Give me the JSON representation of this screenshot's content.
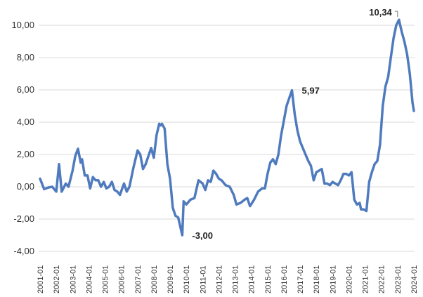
{
  "chart_data": {
    "type": "line",
    "title": "",
    "xlabel": "",
    "ylabel": "",
    "ylim": [
      -4,
      11
    ],
    "y_ticks": [
      -4,
      -2,
      0,
      2,
      4,
      6,
      8,
      10
    ],
    "y_tick_labels": [
      "-4,00",
      "-2,00",
      "0,00",
      "2,00",
      "4,00",
      "6,00",
      "8,00",
      "10,00"
    ],
    "x_tick_labels": [
      "2001-01",
      "2002-01",
      "2003-01",
      "2004-01",
      "2005-01",
      "2006-01",
      "2007-01",
      "2008-01",
      "2009-01",
      "2010-01",
      "2011-01",
      "2012-01",
      "2013-01",
      "2014-01",
      "2015-01",
      "2016-01",
      "2017-01",
      "2018-01",
      "2019-01",
      "2020-01",
      "2021-01",
      "2022-01",
      "2023-01",
      "2024-01"
    ],
    "grid": "horizontal",
    "color": "#4F7BBE",
    "series": [
      {
        "points": [
          [
            "2001-01",
            0.5
          ],
          [
            "2001-04",
            -0.15
          ],
          [
            "2001-07",
            -0.05
          ],
          [
            "2001-10",
            0.0
          ],
          [
            "2002-01",
            -0.3
          ],
          [
            "2002-03",
            1.4
          ],
          [
            "2002-05",
            -0.3
          ],
          [
            "2002-08",
            0.2
          ],
          [
            "2002-10",
            0.0
          ],
          [
            "2003-01",
            1.0
          ],
          [
            "2003-03",
            1.9
          ],
          [
            "2003-05",
            2.35
          ],
          [
            "2003-07",
            1.5
          ],
          [
            "2003-08",
            1.7
          ],
          [
            "2003-10",
            0.7
          ],
          [
            "2003-12",
            0.7
          ],
          [
            "2004-02",
            -0.1
          ],
          [
            "2004-04",
            0.6
          ],
          [
            "2004-06",
            0.4
          ],
          [
            "2004-08",
            0.4
          ],
          [
            "2004-10",
            0.0
          ],
          [
            "2004-12",
            0.3
          ],
          [
            "2005-02",
            -0.1
          ],
          [
            "2005-04",
            0.0
          ],
          [
            "2005-06",
            0.3
          ],
          [
            "2005-08",
            -0.2
          ],
          [
            "2005-10",
            -0.3
          ],
          [
            "2005-12",
            -0.5
          ],
          [
            "2006-03",
            0.2
          ],
          [
            "2006-05",
            -0.3
          ],
          [
            "2006-07",
            0.0
          ],
          [
            "2006-10",
            1.2
          ],
          [
            "2007-01",
            2.25
          ],
          [
            "2007-03",
            2.0
          ],
          [
            "2007-05",
            1.1
          ],
          [
            "2007-07",
            1.4
          ],
          [
            "2007-09",
            1.9
          ],
          [
            "2007-11",
            2.4
          ],
          [
            "2008-01",
            1.8
          ],
          [
            "2008-03",
            3.2
          ],
          [
            "2008-05",
            3.9
          ],
          [
            "2008-06",
            3.8
          ],
          [
            "2008-07",
            3.9
          ],
          [
            "2008-09",
            3.6
          ],
          [
            "2008-11",
            1.4
          ],
          [
            "2009-01",
            0.5
          ],
          [
            "2009-03",
            -1.3
          ],
          [
            "2009-05",
            -1.8
          ],
          [
            "2009-07",
            -1.9
          ],
          [
            "2009-10",
            -3.0
          ],
          [
            "2009-11",
            -0.9
          ],
          [
            "2010-01",
            -1.1
          ],
          [
            "2010-04",
            -0.8
          ],
          [
            "2010-07",
            -0.7
          ],
          [
            "2010-10",
            0.4
          ],
          [
            "2011-01",
            0.2
          ],
          [
            "2011-03",
            -0.2
          ],
          [
            "2011-05",
            0.4
          ],
          [
            "2011-07",
            0.3
          ],
          [
            "2011-09",
            1.0
          ],
          [
            "2011-11",
            0.8
          ],
          [
            "2012-01",
            0.5
          ],
          [
            "2012-03",
            0.4
          ],
          [
            "2012-06",
            0.1
          ],
          [
            "2012-09",
            0.0
          ],
          [
            "2012-12",
            -0.5
          ],
          [
            "2013-02",
            -1.1
          ],
          [
            "2013-05",
            -1.0
          ],
          [
            "2013-08",
            -0.8
          ],
          [
            "2013-10",
            -0.7
          ],
          [
            "2013-12",
            -1.2
          ],
          [
            "2014-03",
            -0.8
          ],
          [
            "2014-06",
            -0.3
          ],
          [
            "2014-09",
            -0.1
          ],
          [
            "2014-11",
            -0.1
          ],
          [
            "2015-01",
            0.8
          ],
          [
            "2015-03",
            1.5
          ],
          [
            "2015-05",
            1.7
          ],
          [
            "2015-07",
            1.4
          ],
          [
            "2015-09",
            2.0
          ],
          [
            "2015-11",
            3.2
          ],
          [
            "2016-01",
            4.1
          ],
          [
            "2016-03",
            5.0
          ],
          [
            "2016-05",
            5.5
          ],
          [
            "2016-07",
            5.97
          ],
          [
            "2016-09",
            4.5
          ],
          [
            "2016-11",
            3.5
          ],
          [
            "2017-01",
            2.8
          ],
          [
            "2017-04",
            2.2
          ],
          [
            "2017-07",
            1.6
          ],
          [
            "2017-09",
            1.3
          ],
          [
            "2017-11",
            0.4
          ],
          [
            "2018-01",
            0.9
          ],
          [
            "2018-03",
            1.0
          ],
          [
            "2018-05",
            1.1
          ],
          [
            "2018-07",
            0.2
          ],
          [
            "2018-09",
            0.2
          ],
          [
            "2018-11",
            0.1
          ],
          [
            "2019-01",
            0.3
          ],
          [
            "2019-03",
            0.2
          ],
          [
            "2019-05",
            0.1
          ],
          [
            "2019-07",
            0.4
          ],
          [
            "2019-09",
            0.8
          ],
          [
            "2019-11",
            0.8
          ],
          [
            "2020-01",
            0.7
          ],
          [
            "2020-03",
            0.9
          ],
          [
            "2020-05",
            -0.8
          ],
          [
            "2020-07",
            -1.1
          ],
          [
            "2020-09",
            -1.0
          ],
          [
            "2020-10",
            -1.4
          ],
          [
            "2020-12",
            -1.4
          ],
          [
            "2021-02",
            -1.5
          ],
          [
            "2021-04",
            0.3
          ],
          [
            "2021-06",
            0.9
          ],
          [
            "2021-08",
            1.4
          ],
          [
            "2021-10",
            1.6
          ],
          [
            "2021-12",
            2.6
          ],
          [
            "2022-02",
            5.0
          ],
          [
            "2022-04",
            6.2
          ],
          [
            "2022-06",
            6.8
          ],
          [
            "2022-08",
            8.0
          ],
          [
            "2022-10",
            9.2
          ],
          [
            "2022-12",
            10.0
          ],
          [
            "2023-02",
            10.34
          ],
          [
            "2023-04",
            9.6
          ],
          [
            "2023-06",
            9.0
          ],
          [
            "2023-08",
            8.2
          ],
          [
            "2023-10",
            7.0
          ],
          [
            "2023-12",
            5.2
          ],
          [
            "2024-01",
            4.7
          ]
        ]
      }
    ],
    "annotations": [
      {
        "label": "10,34",
        "x": "2023-02",
        "y": 10.34
      },
      {
        "label": "5,97",
        "x": "2016-07",
        "y": 5.97
      },
      {
        "label": "-3,00",
        "x": "2009-10",
        "y": -3.0
      }
    ]
  }
}
